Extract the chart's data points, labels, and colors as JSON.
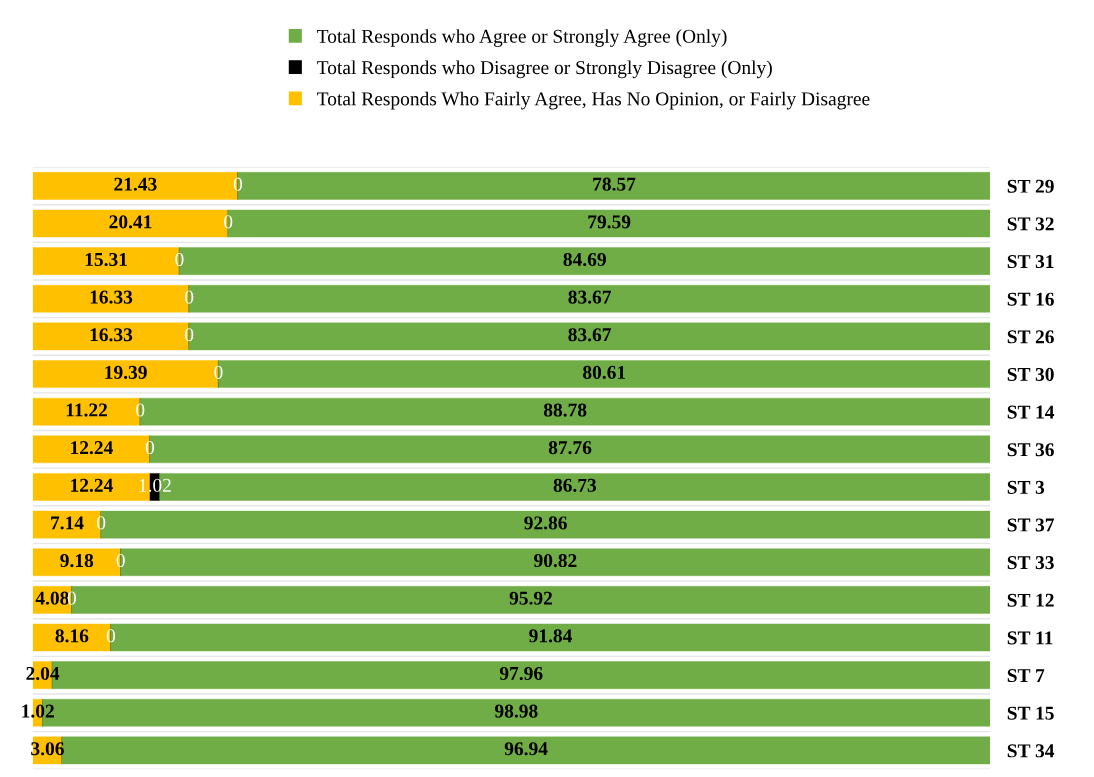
{
  "chart_data": {
    "type": "bar",
    "orientation": "horizontal",
    "stacked": true,
    "legend": "top",
    "categories": [
      "ST 29",
      "ST 32",
      "ST 31",
      "ST 16",
      "ST 26",
      "ST 30",
      "ST 14",
      "ST 36",
      "ST 3",
      "ST 37",
      "ST 33",
      "ST 12",
      "ST 11",
      "ST 7",
      "ST 15",
      "ST 34"
    ],
    "series": [
      {
        "name": "Total Responds Who Fairly Agree, Has No Opinion, or Fairly Disagree",
        "color": "#ffc000",
        "values": [
          21.43,
          20.41,
          15.31,
          16.33,
          16.33,
          19.39,
          11.22,
          12.24,
          12.24,
          7.14,
          9.18,
          4.08,
          8.16,
          2.04,
          1.02,
          3.06
        ],
        "value_labels": [
          "21.43",
          "20.41",
          "15.31",
          "16.33",
          "16.33",
          "19.39",
          "11.22",
          "12.24",
          "12.24",
          "7.14",
          "9.18",
          "4.08",
          "8.16",
          "2.04",
          "1.02",
          "3.06"
        ]
      },
      {
        "name": "Total Responds who Disagree or Strongly Disagree (Only)",
        "color": "#000000",
        "values": [
          0,
          0,
          0,
          0,
          0,
          0,
          0,
          0,
          1.02,
          0,
          0,
          0,
          0,
          0,
          0,
          0
        ],
        "value_labels": [
          "0",
          "0",
          "0",
          "0",
          "0",
          "0",
          "0",
          "0",
          "1.02",
          "0",
          "0",
          "0",
          "0",
          null,
          null,
          null
        ]
      },
      {
        "name": "Total Responds who Agree or Strongly Agree (Only)",
        "color": "#70ad47",
        "values": [
          78.57,
          79.59,
          84.69,
          83.67,
          83.67,
          80.61,
          88.78,
          87.76,
          86.73,
          92.86,
          90.82,
          95.92,
          91.84,
          97.96,
          98.98,
          96.94
        ],
        "value_labels": [
          "78.57",
          "79.59",
          "84.69",
          "83.67",
          "83.67",
          "80.61",
          "88.78",
          "87.76",
          "86.73",
          "92.86",
          "90.82",
          "95.92",
          "91.84",
          "97.96",
          "98.98",
          "96.94"
        ]
      }
    ]
  }
}
